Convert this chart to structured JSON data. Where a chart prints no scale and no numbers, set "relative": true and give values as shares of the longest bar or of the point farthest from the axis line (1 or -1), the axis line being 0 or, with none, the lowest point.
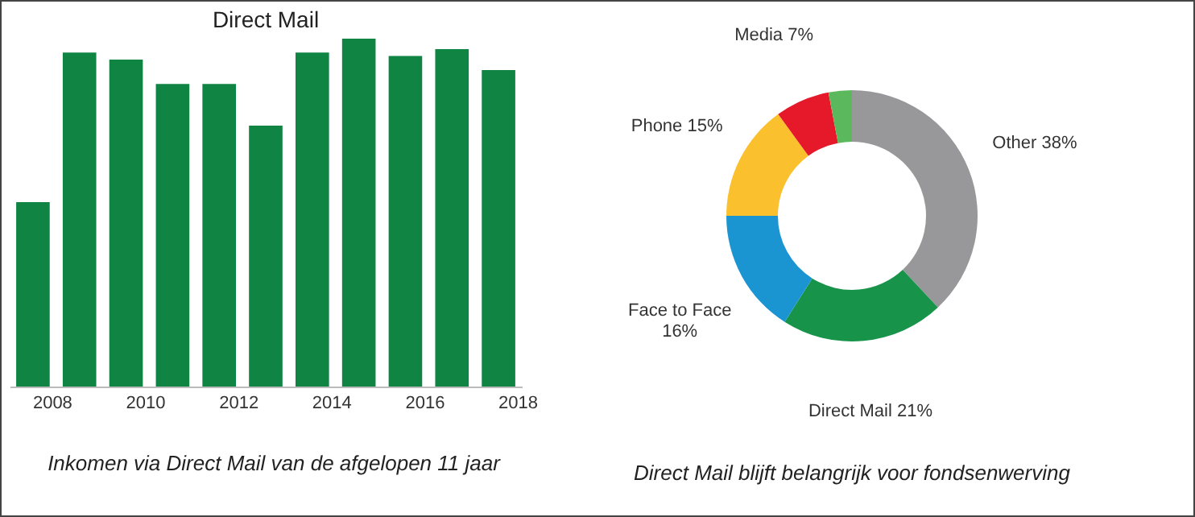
{
  "chart_data": [
    {
      "type": "bar",
      "title": "Direct Mail",
      "relative": true,
      "categories": [
        "2008",
        null,
        "2010",
        null,
        "2012",
        null,
        "2014",
        null,
        "2016",
        null,
        "2018"
      ],
      "color": "#108443",
      "values": [
        0.53,
        0.96,
        0.94,
        0.87,
        0.87,
        0.75,
        0.96,
        1,
        0.95,
        0.97,
        0.91
      ],
      "annotations": [
        "Inkomen via Direct Mail van de afgelopen 11 jaar"
      ]
    },
    {
      "type": "donut",
      "categories": [
        "Other",
        "Direct Mail",
        "Face to Face",
        "Phone",
        "Media",
        null
      ],
      "values": [
        38,
        21,
        16,
        15,
        7,
        3
      ],
      "colors": [
        "#98989a",
        "#17934a",
        "#1b94d2",
        "#fbc02d",
        "#e5192a",
        "#5cb85c"
      ],
      "value_labels": [
        "38%",
        "21%",
        "16%",
        "15%",
        "7%",
        null
      ],
      "annotations": [
        "Direct Mail blijft belangrijk voor fondsenwerving"
      ]
    }
  ]
}
